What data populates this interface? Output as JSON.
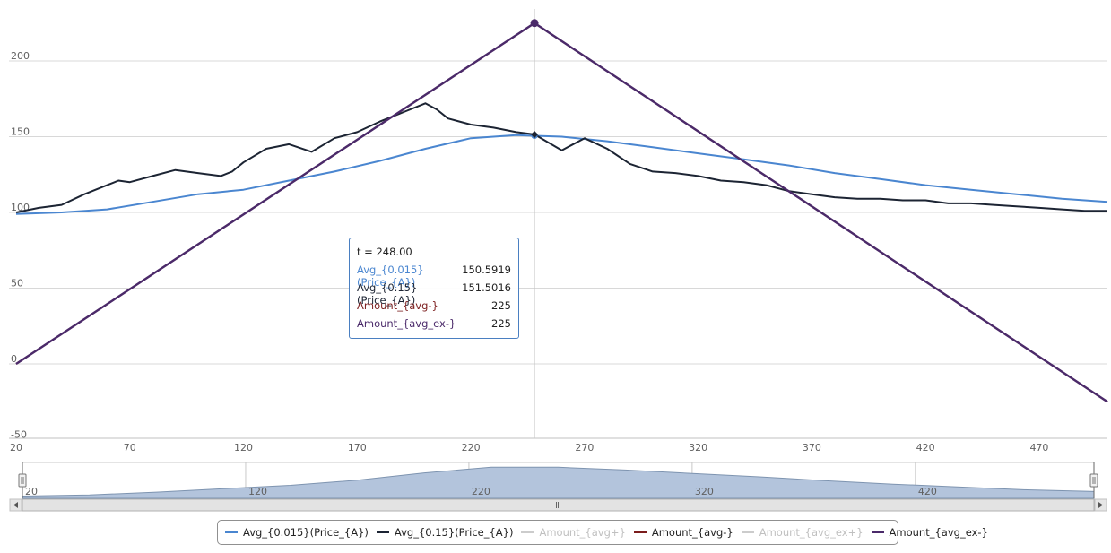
{
  "chart_data": {
    "type": "line",
    "title": "",
    "xlabel": "",
    "ylabel": "",
    "xlim": [
      20,
      500
    ],
    "ylim": [
      -50,
      225
    ],
    "x_ticks": [
      20,
      70,
      120,
      170,
      220,
      270,
      320,
      370,
      420,
      470
    ],
    "y_ticks": [
      -50,
      0,
      50,
      100,
      150,
      200
    ],
    "grid": "horizontal",
    "legend_position": "bottom",
    "crosshair_x": 248,
    "series": [
      {
        "name": "Avg_{0.015}(Price_{A})",
        "color": "#4a86d0",
        "visible": true,
        "x": [
          20,
          40,
          60,
          80,
          100,
          120,
          140,
          160,
          180,
          200,
          220,
          240,
          248,
          260,
          280,
          300,
          320,
          340,
          360,
          380,
          400,
          420,
          440,
          460,
          480,
          500
        ],
        "y": [
          99,
          100,
          102,
          107,
          112,
          115,
          121,
          127,
          134,
          142,
          149,
          151,
          150.5919,
          150,
          147,
          143,
          139,
          135,
          131,
          126,
          122,
          118,
          115,
          112,
          109,
          107
        ]
      },
      {
        "name": "Avg_{0.15}(Price_{A})",
        "color": "#1c2433",
        "visible": true,
        "x": [
          20,
          30,
          40,
          50,
          60,
          65,
          70,
          80,
          90,
          100,
          110,
          115,
          120,
          130,
          140,
          150,
          160,
          170,
          180,
          190,
          200,
          205,
          210,
          220,
          230,
          240,
          248,
          260,
          270,
          280,
          290,
          300,
          310,
          320,
          330,
          340,
          350,
          360,
          370,
          380,
          390,
          400,
          410,
          420,
          430,
          440,
          450,
          460,
          470,
          480,
          490,
          500
        ],
        "y": [
          100,
          103,
          105,
          112,
          118,
          121,
          120,
          124,
          128,
          126,
          124,
          127,
          133,
          142,
          145,
          140,
          149,
          153,
          160,
          166,
          172,
          168,
          162,
          158,
          156,
          153,
          151.5016,
          141,
          149,
          142,
          132,
          127,
          126,
          124,
          121,
          120,
          118,
          114,
          112,
          110,
          109,
          109,
          108,
          108,
          106,
          106,
          105,
          104,
          103,
          102,
          101,
          101
        ]
      },
      {
        "name": "Amount_{avg+}",
        "color": "#c0c0c0",
        "visible": false
      },
      {
        "name": "Amount_{avg-}",
        "color": "#7b1c1c",
        "visible": true,
        "x": [
          20,
          248,
          500
        ],
        "y": [
          0,
          225,
          -25
        ]
      },
      {
        "name": "Amount_{avg_ex+}",
        "color": "#c0c0c0",
        "visible": false
      },
      {
        "name": "Amount_{avg_ex-}",
        "color": "#4b2a6a",
        "visible": true,
        "x": [
          20,
          248,
          500
        ],
        "y": [
          0,
          225,
          -25
        ]
      }
    ],
    "navigator": {
      "x_ticks": [
        20,
        120,
        220,
        320,
        420
      ],
      "series_x": [
        20,
        50,
        80,
        110,
        140,
        170,
        200,
        230,
        260,
        290,
        320,
        350,
        380,
        410,
        440,
        470,
        500
      ],
      "series_y": [
        99,
        101,
        106,
        112,
        118,
        127,
        140,
        150,
        150,
        145,
        139,
        133,
        126,
        120,
        115,
        110,
        107
      ]
    }
  },
  "tooltip": {
    "title_label": "t = ",
    "title_value": "248.00",
    "rows": [
      {
        "label": "Avg_{0.015}(Price_{A})",
        "value": "150.5919",
        "color": "#4a86d0"
      },
      {
        "label": "Avg_{0.15}(Price_{A})",
        "value": "151.5016",
        "color": "#1c2433"
      },
      {
        "label": "Amount_{avg-}",
        "value": "225",
        "color": "#7b1c1c"
      },
      {
        "label": "Amount_{avg_ex-}",
        "value": "225",
        "color": "#4b2a6a"
      }
    ]
  },
  "scrollbar": {
    "grip_icon": "grip-lines-icon",
    "left_arrow_icon": "arrow-left-icon",
    "right_arrow_icon": "arrow-right-icon"
  }
}
